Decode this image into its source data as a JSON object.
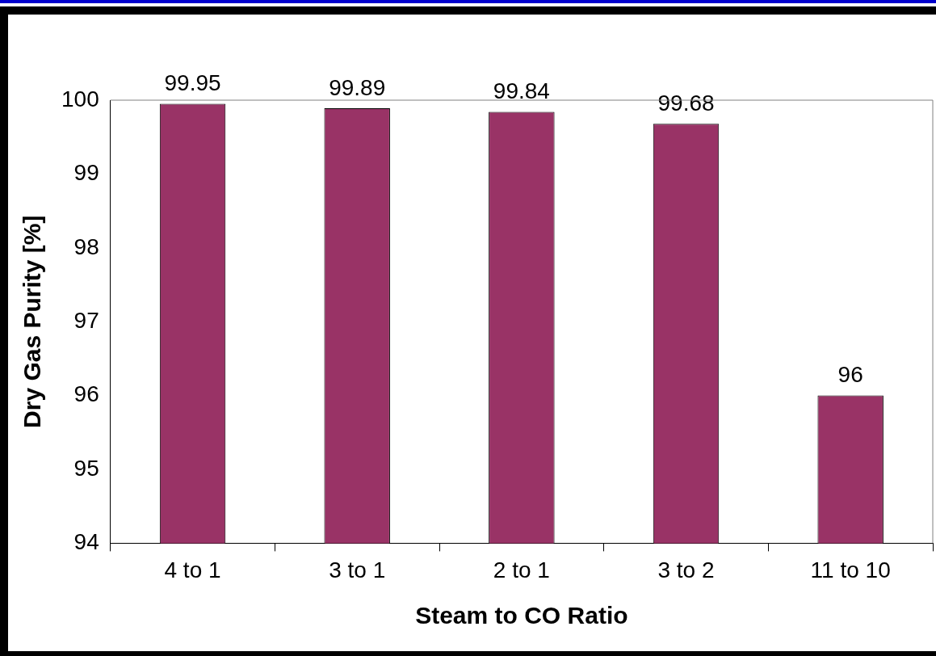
{
  "chart_data": {
    "type": "bar",
    "xlabel": "Steam to CO Ratio",
    "ylabel": "Dry Gas Purity [%]",
    "categories": [
      "4 to 1",
      "3 to 1",
      "2 to 1",
      "3 to 2",
      "11 to 10"
    ],
    "values": [
      99.95,
      99.89,
      99.84,
      99.68,
      96
    ],
    "color": "#993366",
    "ylim": [
      94,
      100
    ],
    "yticks": [
      94,
      95,
      96,
      97,
      98,
      99,
      100
    ],
    "data_labels": true
  }
}
